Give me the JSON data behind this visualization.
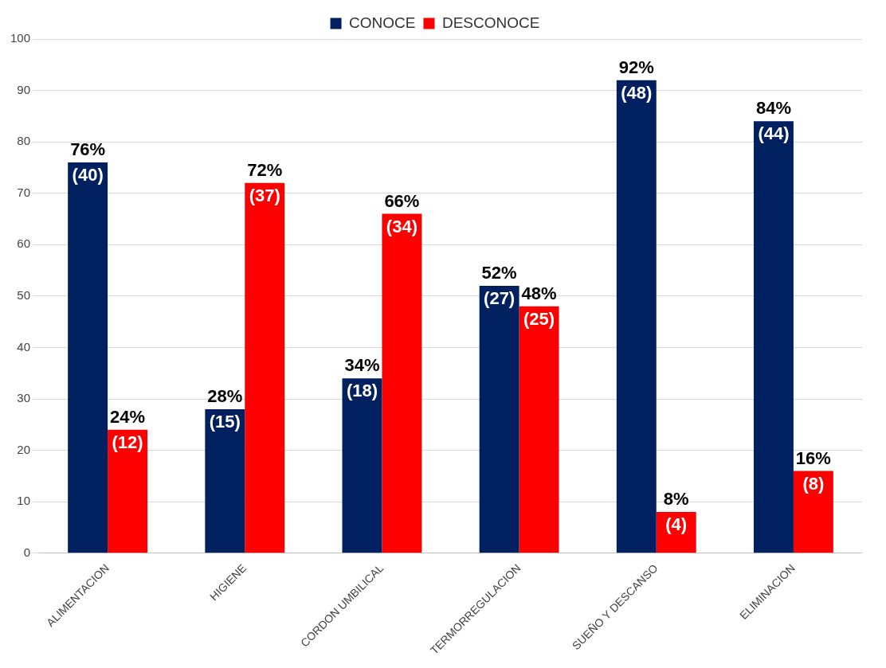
{
  "chart_data": {
    "type": "bar",
    "categories": [
      "ALIMENTACION",
      "HIGIENE",
      "CORDON UMBILICAL",
      "TERMORREGULACION",
      "SUEÑO Y DESCANSO",
      "ELIMINACION"
    ],
    "series": [
      {
        "name": "CONOCE",
        "color": "#002060",
        "values": [
          76,
          28,
          34,
          52,
          92,
          84
        ],
        "value_labels": [
          "76%\n(40)",
          "28%\n(15)",
          "34%\n(18)",
          "52%\n(27)",
          "92%\n(48)",
          "84%\n(44)"
        ]
      },
      {
        "name": "DESCONOCE",
        "color": "#ff0000",
        "values": [
          24,
          72,
          66,
          48,
          8,
          16
        ],
        "value_labels": [
          "24%\n(12)",
          "72%\n(37)",
          "66%\n(34)",
          "48%\n(25)",
          "8%\n(4)",
          "16%\n(8)"
        ]
      }
    ],
    "ylim": [
      0,
      100
    ],
    "yticks": [
      0,
      10,
      20,
      30,
      40,
      50,
      60,
      70,
      80,
      90,
      100
    ],
    "grid": "y",
    "legend": "top"
  }
}
